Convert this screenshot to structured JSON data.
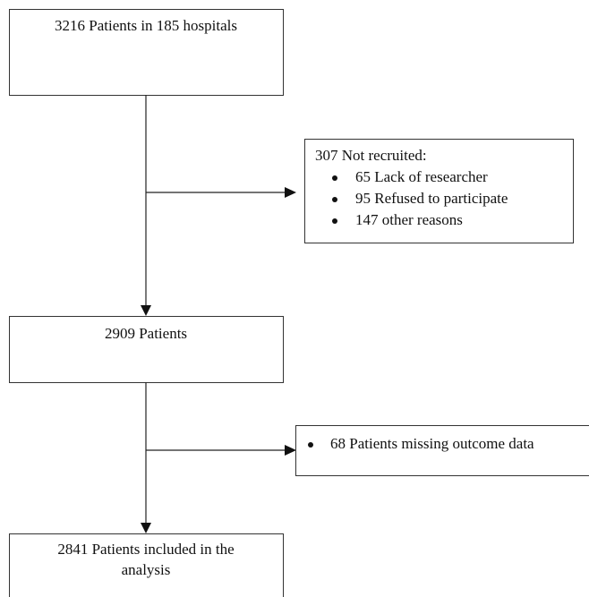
{
  "nodes": [
    {
      "label": "3216 Patients in 185 hospitals"
    },
    {
      "label": "307 Not recruited:",
      "items": [
        "65 Lack of researcher",
        "95 Refused to participate",
        "147 other reasons"
      ]
    },
    {
      "label": "2909 Patients"
    },
    {
      "items": [
        "68 Patients missing outcome data"
      ]
    },
    {
      "lines": [
        "2841 Patients included in the",
        "analysis"
      ]
    }
  ]
}
